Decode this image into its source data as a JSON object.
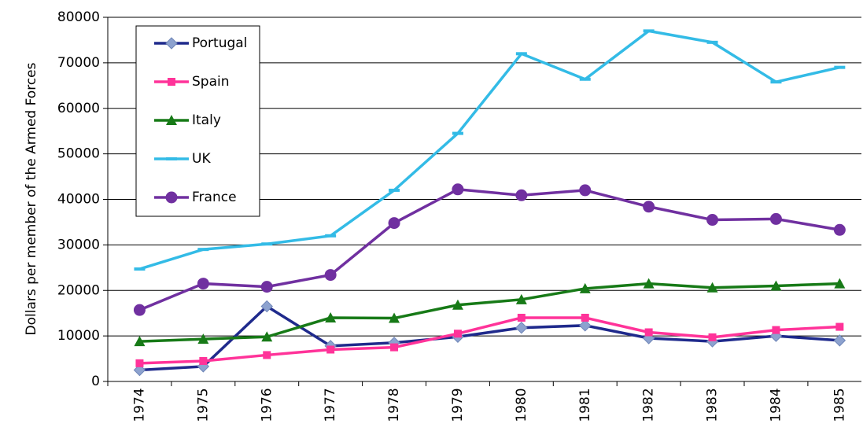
{
  "chart_data": {
    "type": "line",
    "y_label": "Dollars per member of the Armed Forces",
    "categories": [
      "1974",
      "1975",
      "1976",
      "1977",
      "1978",
      "1979",
      "1980",
      "1981",
      "1982",
      "1983",
      "1984",
      "1985"
    ],
    "ylim": [
      0,
      80000
    ],
    "yticks": [
      0,
      10000,
      20000,
      30000,
      40000,
      50000,
      60000,
      70000,
      80000
    ],
    "grid": true,
    "legend": "upper left",
    "series": [
      {
        "name": "Portugal",
        "color": "#1f2a8c",
        "marker": "diamond",
        "marker_color": "#8da2cf",
        "values": [
          2500,
          3300,
          16500,
          7800,
          8500,
          9800,
          11800,
          12300,
          9500,
          8800,
          10000,
          9000
        ]
      },
      {
        "name": "Spain",
        "color": "#ff3399",
        "marker": "square",
        "marker_color": "#ff3399",
        "values": [
          4000,
          4500,
          5800,
          7000,
          7500,
          10500,
          14000,
          14000,
          10800,
          9700,
          11300,
          12000
        ]
      },
      {
        "name": "Italy",
        "color": "#177a17",
        "marker": "triangle",
        "marker_color": "#177a17",
        "values": [
          8800,
          9300,
          9800,
          14000,
          13900,
          16800,
          18000,
          20400,
          21500,
          20600,
          21000,
          21500
        ]
      },
      {
        "name": "UK",
        "color": "#33bbe6",
        "marker": "dash",
        "marker_color": "#33bbe6",
        "values": [
          24700,
          29000,
          30200,
          32000,
          42000,
          54500,
          72000,
          66400,
          77000,
          74500,
          65800,
          69000
        ]
      },
      {
        "name": "France",
        "color": "#7030a0",
        "marker": "circle",
        "marker_color": "#7030a0",
        "values": [
          15700,
          21500,
          20800,
          23400,
          34800,
          42200,
          40900,
          42000,
          38400,
          35500,
          35700,
          33300
        ]
      }
    ]
  }
}
